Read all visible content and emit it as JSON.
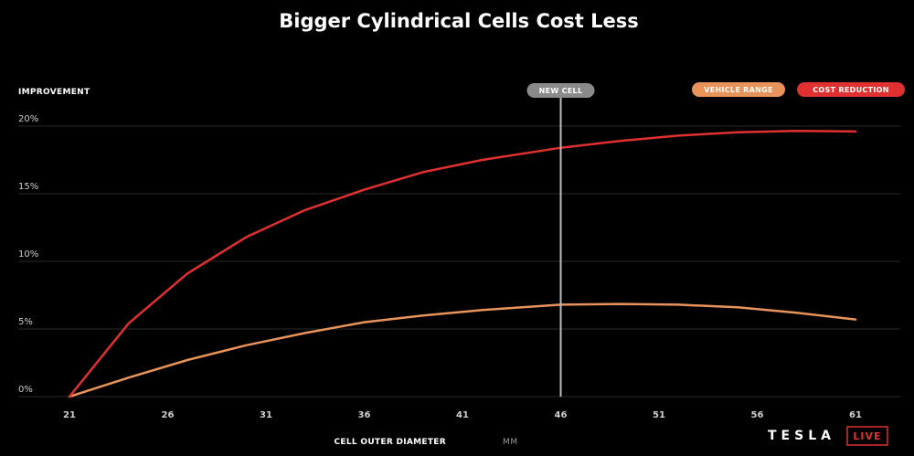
{
  "colors": {
    "background": "#000000",
    "cost_reduction": "#e0302f",
    "vehicle_range": "#e8935a",
    "new_cell_marker": "#8a8a8a",
    "gridline": "#2a2a2a"
  },
  "brand": {
    "name": "TESLA",
    "badge": "LIVE"
  },
  "chart_data": {
    "type": "line",
    "title": "Bigger Cylindrical Cells Cost Less",
    "ylabel": "IMPROVEMENT",
    "xlabel": "CELL OUTER DIAMETER",
    "xunit": "MM",
    "xlim": [
      21,
      61
    ],
    "ylim": [
      0,
      20
    ],
    "xticks": [
      21,
      26,
      31,
      36,
      41,
      46,
      51,
      56,
      61
    ],
    "yticks": [
      {
        "value": 0,
        "label": "0%"
      },
      {
        "value": 5,
        "label": "5%"
      },
      {
        "value": 10,
        "label": "10%"
      },
      {
        "value": 15,
        "label": "15%"
      },
      {
        "value": 20,
        "label": "20%"
      }
    ],
    "grid": true,
    "legend_position": "top-right",
    "marker": {
      "x": 46,
      "label": "NEW CELL"
    },
    "series": [
      {
        "name": "VEHICLE RANGE",
        "color": "#e8935a",
        "x": [
          21,
          24,
          27,
          30,
          33,
          36,
          39,
          42,
          46,
          49,
          52,
          55,
          58,
          61
        ],
        "values": [
          0,
          1.4,
          2.7,
          3.8,
          4.7,
          5.5,
          6.0,
          6.4,
          6.8,
          6.85,
          6.8,
          6.6,
          6.2,
          5.7
        ]
      },
      {
        "name": "COST REDUCTION",
        "color": "#e0302f",
        "x": [
          21,
          24,
          27,
          30,
          33,
          36,
          39,
          42,
          46,
          49,
          52,
          55,
          58,
          61
        ],
        "values": [
          0,
          5.4,
          9.1,
          11.8,
          13.8,
          15.3,
          16.6,
          17.5,
          18.4,
          18.9,
          19.3,
          19.55,
          19.65,
          19.6
        ]
      }
    ]
  }
}
